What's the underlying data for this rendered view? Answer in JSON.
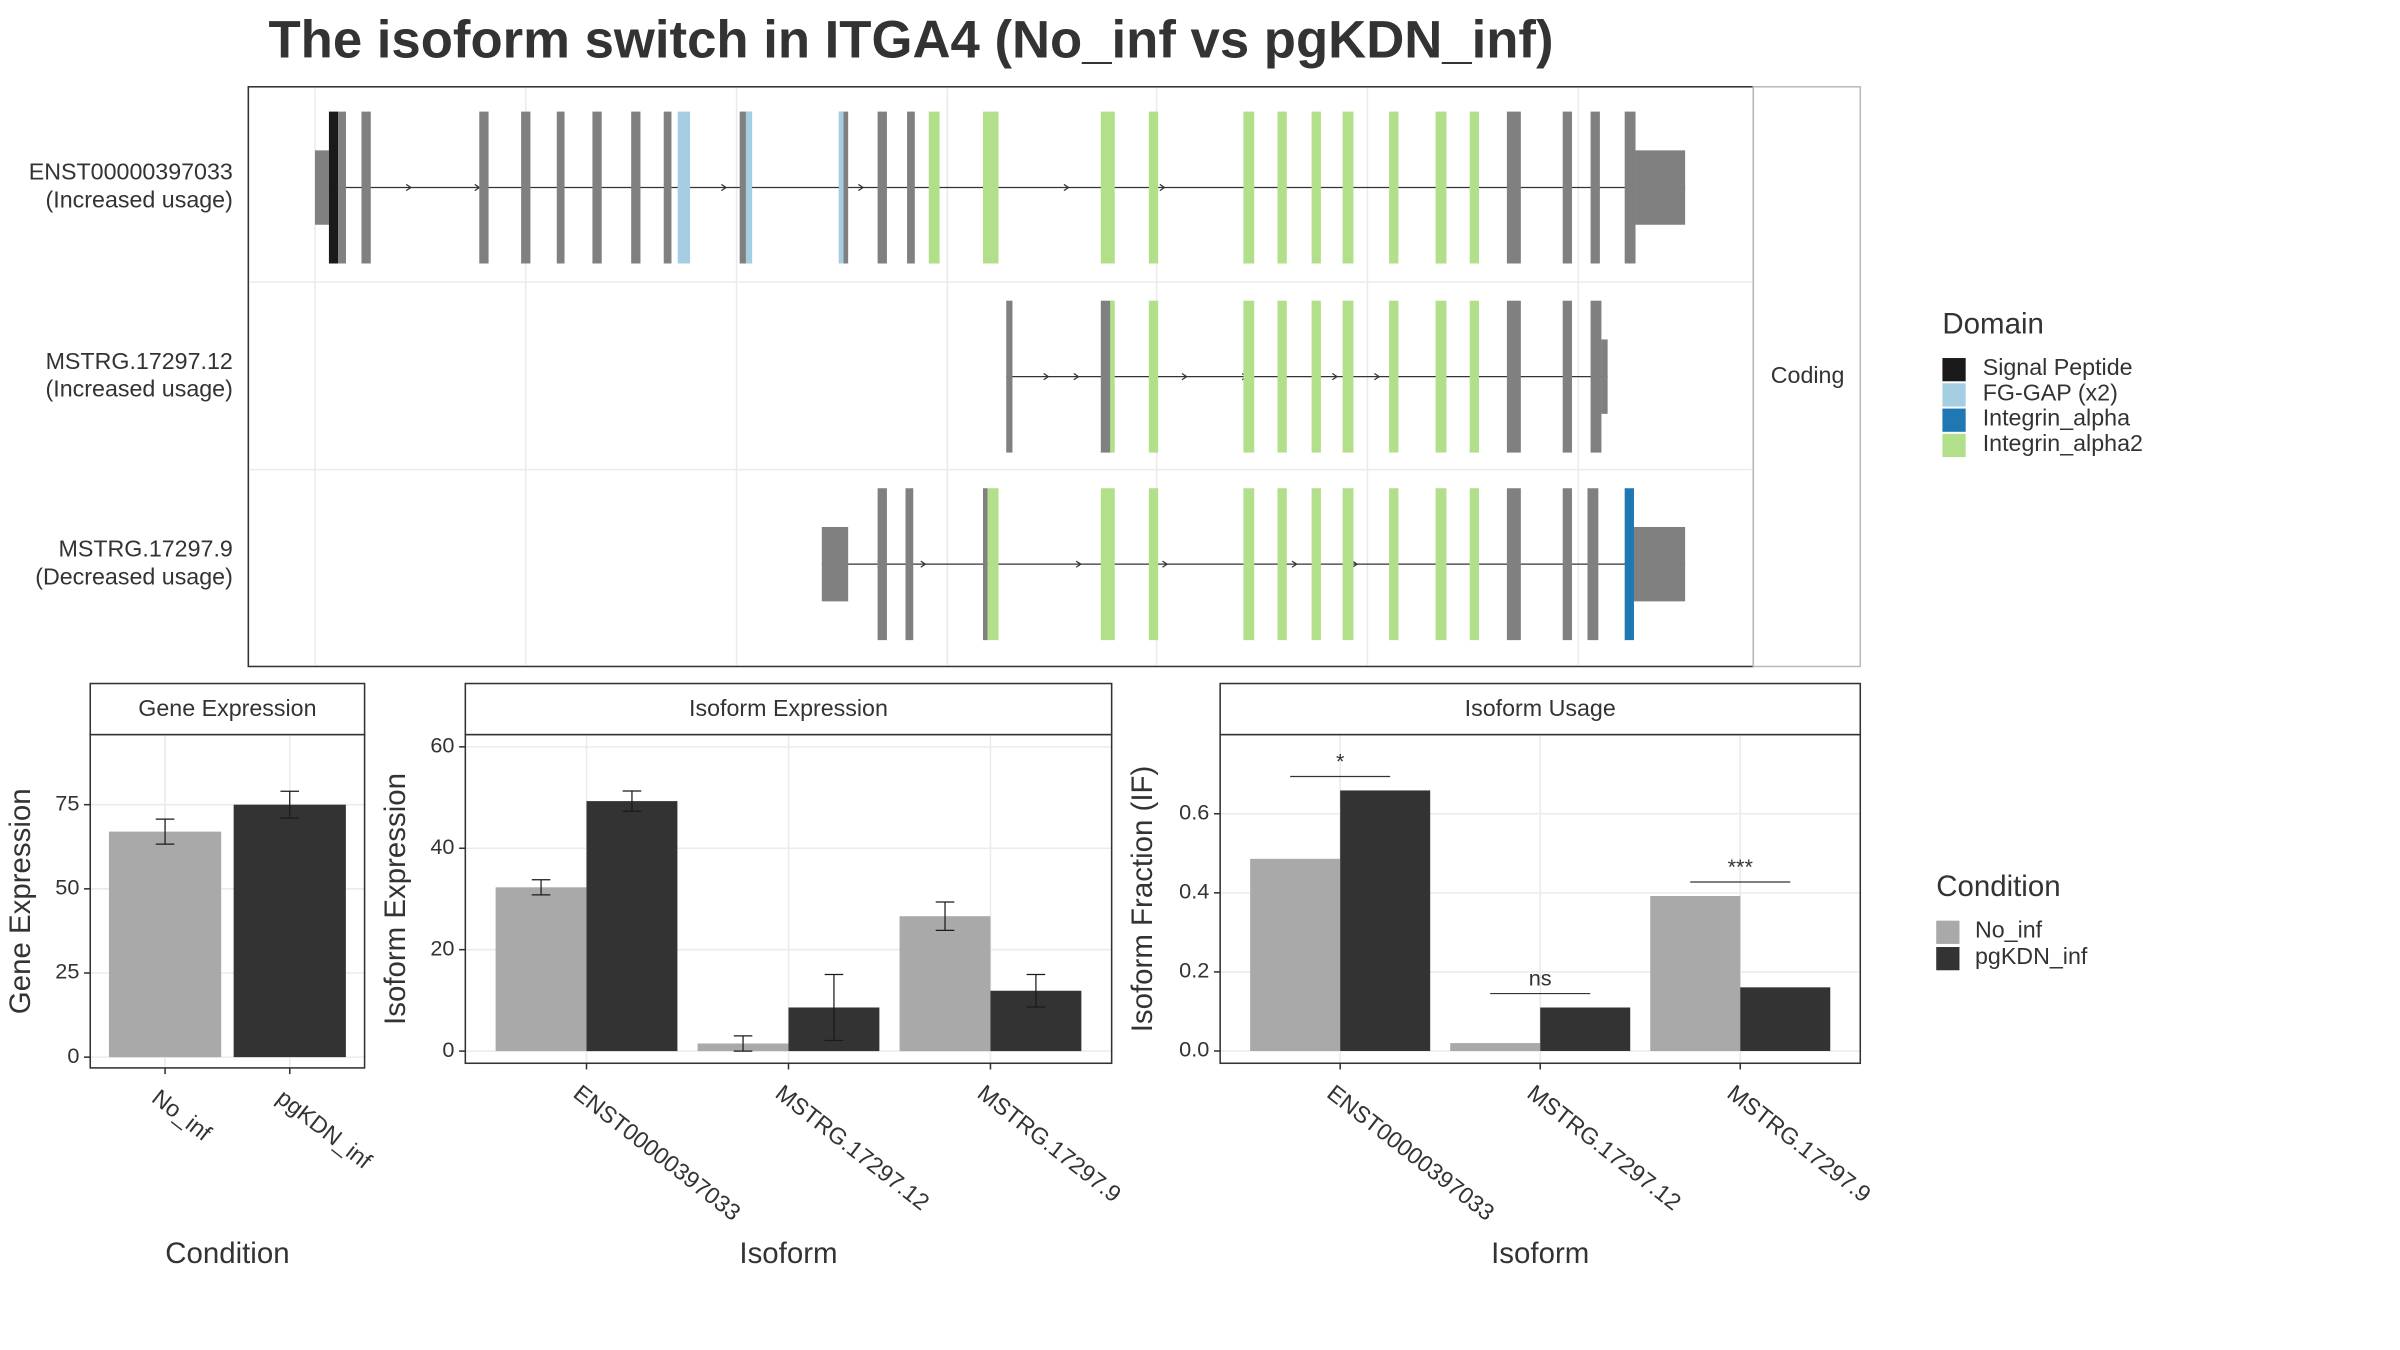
{
  "title": "The isoform switch in ITGA4 (No_inf vs pgKDN_inf)",
  "transcripts": {
    "facet": "Coding",
    "labels": [
      {
        "name": "ENST00000397033",
        "usage": "(Increased usage)"
      },
      {
        "name": "MSTRG.17297.12",
        "usage": "(Increased usage)"
      },
      {
        "name": "MSTRG.17297.9",
        "usage": "(Decreased usage)"
      }
    ],
    "legend_title": "Domain",
    "domains": [
      {
        "name": "Signal Peptide",
        "color": "#1a1a1a"
      },
      {
        "name": "FG-GAP (x2)",
        "color": "#a6cee3"
      },
      {
        "name": "Integrin_alpha",
        "color": "#1f78b4"
      },
      {
        "name": "Integrin_alpha2",
        "color": "#b2df8a"
      }
    ]
  },
  "legend_title": "Condition",
  "chart_data": [
    {
      "type": "bar",
      "title": "Gene Expression",
      "xlabel": "Condition",
      "ylabel": "Gene Expression",
      "categories": [
        "No_inf",
        "pgKDN_inf"
      ],
      "values": [
        67,
        75
      ],
      "errors": [
        3.7,
        4
      ],
      "colors": [
        "#a9a9a9",
        "#333333"
      ],
      "ylim": [
        -3.2,
        95.8
      ],
      "yticks": [
        0,
        25,
        50,
        75
      ],
      "grid": true
    },
    {
      "type": "bar",
      "title": "Isoform Expression",
      "xlabel": "Isoform",
      "ylabel": "Isoform Expression",
      "categories": [
        "ENST00000397033",
        "MSTRG.17297.12",
        "MSTRG.17297.9"
      ],
      "series": [
        {
          "name": "No_inf",
          "color": "#a9a9a9",
          "values": [
            32.3,
            1.5,
            26.6
          ],
          "errors": [
            1.5,
            1.5,
            2.8
          ]
        },
        {
          "name": "pgKDN_inf",
          "color": "#333333",
          "values": [
            49.3,
            8.6,
            11.9
          ],
          "errors": [
            2,
            6.5,
            3.2
          ]
        }
      ],
      "ylim": [
        -2.4,
        62.4
      ],
      "yticks": [
        0,
        20,
        40,
        60
      ],
      "grid": true
    },
    {
      "type": "bar",
      "title": "Isoform Usage",
      "xlabel": "Isoform",
      "ylabel": "Isoform Fraction (IF)",
      "categories": [
        "ENST00000397033",
        "MSTRG.17297.12",
        "MSTRG.17297.9"
      ],
      "series": [
        {
          "name": "No_inf",
          "color": "#a9a9a9",
          "values": [
            0.486,
            0.02,
            0.392
          ]
        },
        {
          "name": "pgKDN_inf",
          "color": "#333333",
          "values": [
            0.659,
            0.11,
            0.161
          ]
        }
      ],
      "significance": [
        "*",
        "ns",
        "***"
      ],
      "ylim": [
        -0.031,
        0.8
      ],
      "yticks": [
        {
          "value": 0,
          "label": "0.0"
        },
        {
          "value": 0.2,
          "label": "0.2"
        },
        {
          "value": 0.4,
          "label": "0.4"
        },
        {
          "value": 0.6,
          "label": "0.6"
        }
      ],
      "grid": true
    }
  ]
}
